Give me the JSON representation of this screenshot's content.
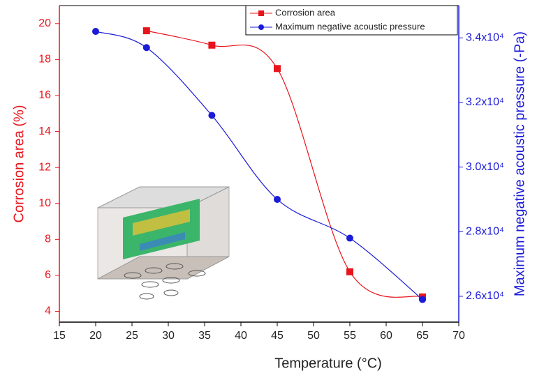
{
  "chart_data": {
    "type": "line",
    "x_label": "Temperature (°C)",
    "y_label": "Corrosion area (%)",
    "y2_label": "Maximum negative acoustic pressure (-Pa)",
    "xlim": [
      15,
      70
    ],
    "xticks": [
      15,
      20,
      25,
      30,
      35,
      40,
      45,
      50,
      55,
      60,
      65,
      70
    ],
    "ylim": [
      3.4,
      21
    ],
    "yticks": [
      4,
      6,
      8,
      10,
      12,
      14,
      16,
      18,
      20
    ],
    "y2lim": [
      25200,
      35000
    ],
    "y2ticks": [
      {
        "value": 26000,
        "label": "2.6x10⁴"
      },
      {
        "value": 28000,
        "label": "2.8x10⁴"
      },
      {
        "value": 30000,
        "label": "3.0x10⁴"
      },
      {
        "value": 32000,
        "label": "3.2x10⁴"
      },
      {
        "value": 34000,
        "label": "3.4x10⁴"
      }
    ],
    "y_color": "#e8141c",
    "y2_color": "#1b1bd8",
    "legend": "top-right",
    "series": [
      {
        "name": "Corrosion area",
        "color": "#e8141c",
        "marker": "square",
        "x": [
          27,
          36,
          45,
          55,
          65
        ],
        "values": [
          19.6,
          18.8,
          17.5,
          6.2,
          4.8
        ]
      },
      {
        "name": "Maximum negative acoustic pressure",
        "color": "#1b1bd8",
        "marker": "circle",
        "axis": "y2",
        "x": [
          20,
          27,
          36,
          45,
          55,
          65
        ],
        "values": [
          34200,
          33700,
          31600,
          29000,
          27800,
          25900
        ]
      }
    ]
  }
}
